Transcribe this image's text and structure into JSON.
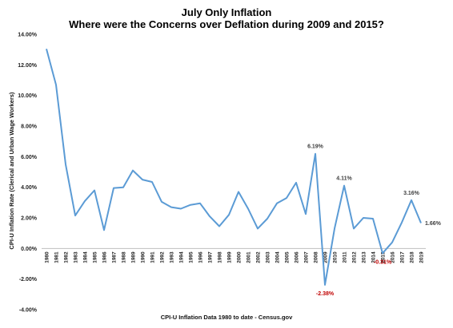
{
  "chart_data": {
    "type": "line",
    "title": "July Only Inflation",
    "subtitle": "Where were the Concerns over Deflation during 2009 and 2015?",
    "xlabel": "CPI-U Inflation Data 1980 to date - Census.gov",
    "ylabel": "CPI-U Inflation Rate (Clerical and Urban Wage Workers)",
    "ylim": [
      -4,
      14
    ],
    "yticks": [
      "-4.00%",
      "-2.00%",
      "0.00%",
      "2.00%",
      "4.00%",
      "6.00%",
      "8.00%",
      "10.00%",
      "12.00%",
      "14.00%"
    ],
    "grid": false,
    "legend": "none",
    "color": "#5b9bd5",
    "x": [
      "1980",
      "1981",
      "1982",
      "1983",
      "1984",
      "1985",
      "1986",
      "1987",
      "1988",
      "1989",
      "1990",
      "1991",
      "1992",
      "1993",
      "1994",
      "1995",
      "1996",
      "1997",
      "1998",
      "1999",
      "2000",
      "2001",
      "2002",
      "2003",
      "2004",
      "2005",
      "2006",
      "2007",
      "2008",
      "2009",
      "2010",
      "2011",
      "2012",
      "2013",
      "2014",
      "2015",
      "2016",
      "2017",
      "2018",
      "2019"
    ],
    "values": [
      13.05,
      10.7,
      5.5,
      2.15,
      3.1,
      3.8,
      1.2,
      3.95,
      4.0,
      5.1,
      4.5,
      4.35,
      3.05,
      2.7,
      2.6,
      2.85,
      2.95,
      2.1,
      1.45,
      2.2,
      3.7,
      2.6,
      1.3,
      1.95,
      2.95,
      3.3,
      4.3,
      2.25,
      6.19,
      -2.38,
      1.3,
      4.11,
      1.3,
      2.0,
      1.95,
      -0.31,
      0.4,
      1.7,
      3.16,
      1.66
    ],
    "annotations": [
      {
        "x": "2008",
        "value": 6.19,
        "text": "6.19%",
        "color": "#404040",
        "pos": "above"
      },
      {
        "x": "2009",
        "value": -2.38,
        "text": "-2.38%",
        "color": "#c00000",
        "pos": "below"
      },
      {
        "x": "2011",
        "value": 4.11,
        "text": "4.11%",
        "color": "#404040",
        "pos": "above"
      },
      {
        "x": "2015",
        "value": -0.31,
        "text": "-0.31%",
        "color": "#c00000",
        "pos": "below"
      },
      {
        "x": "2018",
        "value": 3.16,
        "text": "3.16%",
        "color": "#404040",
        "pos": "above"
      },
      {
        "x": "2019",
        "value": 1.66,
        "text": "1.66%",
        "color": "#404040",
        "pos": "right"
      }
    ]
  }
}
